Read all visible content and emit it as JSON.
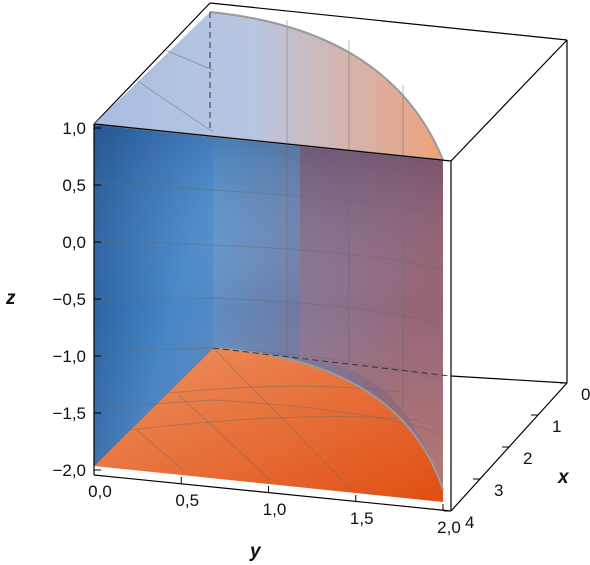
{
  "chart_data": {
    "type": "surface",
    "axes": {
      "x": {
        "label": "x",
        "range": [
          0,
          4
        ],
        "ticks": [
          "0",
          "1",
          "2",
          "3",
          "4"
        ]
      },
      "y": {
        "label": "y",
        "range": [
          0,
          2
        ],
        "ticks": [
          "0,0",
          "0,5",
          "1,0",
          "1,5",
          "2,0"
        ]
      },
      "z": {
        "label": "z",
        "range": [
          -2,
          1
        ],
        "ticks": [
          "−2,0",
          "−1,5",
          "−1,0",
          "−0,5",
          "0,0",
          "0,5",
          "1,0"
        ]
      }
    },
    "surfaces": [
      {
        "name": "curved wall y² + x = 4",
        "colors": [
          "#b2c6e8",
          "#e9a37e"
        ]
      },
      {
        "name": "plane y = 0",
        "colors": [
          "#2a5f9e",
          "#5da0d8"
        ]
      },
      {
        "name": "plane z = −2",
        "colors": [
          "#e97a45",
          "#e2541a"
        ]
      }
    ],
    "grid": true
  }
}
